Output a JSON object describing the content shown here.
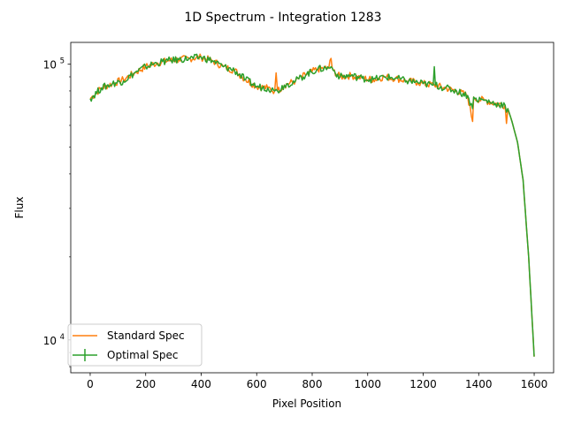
{
  "chart_data": {
    "type": "line",
    "title": "1D Spectrum - Integration 1283",
    "xlabel": "Pixel Position",
    "ylabel": "Flux",
    "xlim": [
      -70,
      1670
    ],
    "ylim": [
      7600,
      120000
    ],
    "yscale": "log",
    "grid": false,
    "legend_position": "lower-left",
    "x_ticks": [
      0,
      200,
      400,
      600,
      800,
      1000,
      1200,
      1400,
      1600
    ],
    "x_tick_labels": [
      "0",
      "200",
      "400",
      "600",
      "800",
      "1000",
      "1200",
      "1400",
      "1600"
    ],
    "y_major_ticks": [
      10000,
      100000
    ],
    "y_tick_base": "10",
    "y_tick_exponents": [
      "4",
      "5"
    ],
    "series": [
      {
        "name": "Standard Spec",
        "color": "#ff7f0e",
        "x": [
          0,
          40,
          80,
          120,
          160,
          200,
          240,
          280,
          320,
          360,
          400,
          440,
          480,
          520,
          560,
          600,
          640,
          665,
          670,
          675,
          700,
          740,
          780,
          820,
          860,
          868,
          872,
          876,
          900,
          940,
          980,
          1020,
          1060,
          1100,
          1140,
          1180,
          1200,
          1240,
          1280,
          1320,
          1360,
          1378,
          1382,
          1386,
          1420,
          1460,
          1495,
          1500,
          1505,
          1520,
          1540,
          1560,
          1580,
          1600
        ],
        "values": [
          75000,
          82000,
          85000,
          88000,
          93000,
          98000,
          101000,
          103000,
          104000,
          105000,
          106000,
          103000,
          98000,
          95000,
          88000,
          83000,
          82000,
          80000,
          93000,
          80000,
          84000,
          87000,
          92000,
          96000,
          97000,
          105000,
          97000,
          95000,
          90000,
          91000,
          89000,
          88000,
          90000,
          89000,
          87000,
          86000,
          85000,
          84000,
          82000,
          80000,
          77000,
          62000,
          76000,
          75000,
          74000,
          72000,
          71000,
          61000,
          69000,
          62000,
          52000,
          38000,
          20000,
          8700
        ]
      },
      {
        "name": "Optimal Spec",
        "color": "#2ca02c",
        "x": [
          0,
          40,
          80,
          120,
          160,
          200,
          240,
          280,
          320,
          360,
          400,
          440,
          480,
          520,
          560,
          600,
          640,
          665,
          670,
          675,
          700,
          740,
          780,
          820,
          860,
          868,
          872,
          876,
          900,
          940,
          980,
          1020,
          1060,
          1100,
          1140,
          1180,
          1200,
          1236,
          1240,
          1244,
          1280,
          1320,
          1360,
          1378,
          1382,
          1386,
          1420,
          1460,
          1495,
          1500,
          1505,
          1520,
          1540,
          1560,
          1580,
          1600
        ],
        "values": [
          75000,
          82000,
          85000,
          87000,
          93000,
          98000,
          101000,
          103000,
          104000,
          105000,
          106000,
          103000,
          98000,
          95000,
          88000,
          83000,
          82000,
          80000,
          81000,
          80000,
          84000,
          87000,
          92000,
          96000,
          97000,
          98000,
          97000,
          95000,
          90000,
          91000,
          89000,
          88000,
          90000,
          89000,
          87000,
          86000,
          85000,
          84000,
          98000,
          84000,
          82000,
          80000,
          77000,
          69000,
          76000,
          75000,
          74000,
          72000,
          71000,
          67000,
          69000,
          62000,
          52000,
          38000,
          20000,
          8700
        ]
      }
    ]
  }
}
